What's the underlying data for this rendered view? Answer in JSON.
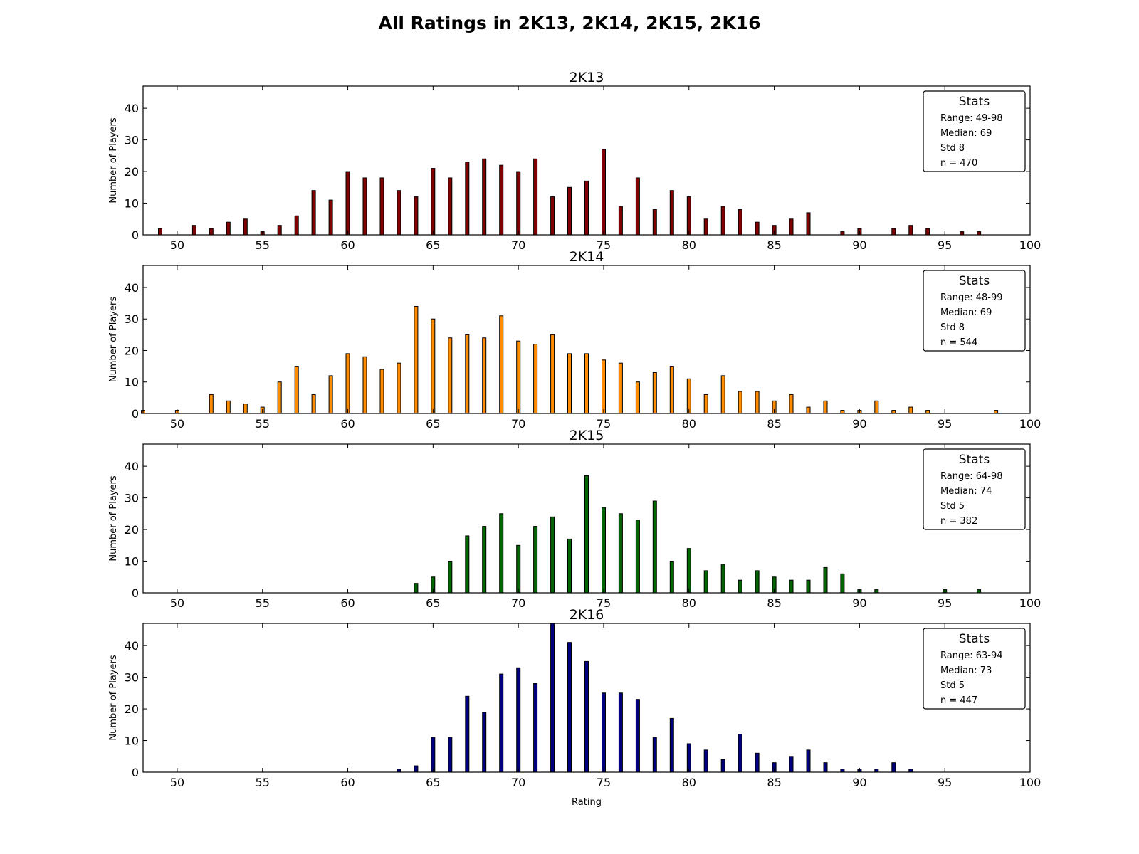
{
  "figure_title": "All Ratings in 2K13, 2K14, 2K15, 2K16",
  "chart_data": [
    {
      "type": "bar",
      "title": "2K13",
      "xlabel": "",
      "ylabel": "Number of Players",
      "xlim": [
        48,
        100
      ],
      "ylim": [
        0,
        47
      ],
      "xticks": [
        50,
        55,
        60,
        65,
        70,
        75,
        80,
        85,
        90,
        95,
        100
      ],
      "yticks": [
        0,
        10,
        20,
        30,
        40
      ],
      "color": "#800000",
      "grid": false,
      "x": [
        49,
        50,
        51,
        52,
        53,
        54,
        55,
        56,
        57,
        58,
        59,
        60,
        61,
        62,
        63,
        64,
        65,
        66,
        67,
        68,
        69,
        70,
        71,
        72,
        73,
        74,
        75,
        76,
        77,
        78,
        79,
        80,
        81,
        82,
        83,
        84,
        85,
        86,
        87,
        88,
        89,
        90,
        91,
        92,
        93,
        94,
        95,
        96,
        97,
        98
      ],
      "values": [
        2,
        0,
        3,
        2,
        4,
        5,
        1,
        3,
        6,
        14,
        11,
        20,
        18,
        18,
        14,
        12,
        21,
        18,
        23,
        24,
        22,
        20,
        24,
        12,
        15,
        17,
        27,
        9,
        18,
        8,
        14,
        12,
        5,
        9,
        8,
        4,
        3,
        5,
        7,
        0,
        1,
        2,
        0,
        2,
        3,
        2,
        0,
        1,
        1,
        0
      ],
      "stats": {
        "title": "Stats",
        "lines": [
          "Range: 49-98",
          "Median: 69",
          "Std 8",
          "n = 470"
        ]
      }
    },
    {
      "type": "bar",
      "title": "2K14",
      "xlabel": "",
      "ylabel": "Number of Players",
      "xlim": [
        48,
        100
      ],
      "ylim": [
        0,
        47
      ],
      "xticks": [
        50,
        55,
        60,
        65,
        70,
        75,
        80,
        85,
        90,
        95,
        100
      ],
      "yticks": [
        0,
        10,
        20,
        30,
        40
      ],
      "color": "#ff8c00",
      "grid": false,
      "x": [
        48,
        49,
        50,
        51,
        52,
        53,
        54,
        55,
        56,
        57,
        58,
        59,
        60,
        61,
        62,
        63,
        64,
        65,
        66,
        67,
        68,
        69,
        70,
        71,
        72,
        73,
        74,
        75,
        76,
        77,
        78,
        79,
        80,
        81,
        82,
        83,
        84,
        85,
        86,
        87,
        88,
        89,
        90,
        91,
        92,
        93,
        94,
        95,
        96,
        97,
        98
      ],
      "values": [
        1,
        0,
        1,
        0,
        6,
        4,
        3,
        2,
        10,
        15,
        6,
        12,
        19,
        18,
        14,
        16,
        34,
        30,
        24,
        25,
        24,
        31,
        23,
        22,
        25,
        19,
        19,
        17,
        16,
        10,
        13,
        15,
        11,
        6,
        12,
        7,
        7,
        4,
        6,
        2,
        4,
        1,
        1,
        4,
        1,
        2,
        1,
        0,
        0,
        0,
        1
      ],
      "stats": {
        "title": "Stats",
        "lines": [
          "Range: 48-99",
          "Median: 69",
          "Std 8",
          "n = 544"
        ]
      }
    },
    {
      "type": "bar",
      "title": "2K15",
      "xlabel": "",
      "ylabel": "Number of Players",
      "xlim": [
        48,
        100
      ],
      "ylim": [
        0,
        47
      ],
      "xticks": [
        50,
        55,
        60,
        65,
        70,
        75,
        80,
        85,
        90,
        95,
        100
      ],
      "yticks": [
        0,
        10,
        20,
        30,
        40
      ],
      "color": "#006400",
      "grid": false,
      "x": [
        64,
        65,
        66,
        67,
        68,
        69,
        70,
        71,
        72,
        73,
        74,
        75,
        76,
        77,
        78,
        79,
        80,
        81,
        82,
        83,
        84,
        85,
        86,
        87,
        88,
        89,
        90,
        91,
        92,
        93,
        94,
        95,
        96,
        97
      ],
      "values": [
        3,
        5,
        10,
        18,
        21,
        25,
        15,
        21,
        24,
        17,
        37,
        27,
        25,
        23,
        29,
        10,
        14,
        7,
        9,
        4,
        7,
        5,
        4,
        4,
        8,
        6,
        1,
        1,
        0,
        0,
        0,
        1,
        0,
        1
      ],
      "stats": {
        "title": "Stats",
        "lines": [
          "Range: 64-98",
          "Median: 74",
          "Std 5",
          "n = 382"
        ]
      }
    },
    {
      "type": "bar",
      "title": "2K16",
      "xlabel": "Rating",
      "ylabel": "Number of Players",
      "xlim": [
        48,
        100
      ],
      "ylim": [
        0,
        47
      ],
      "xticks": [
        50,
        55,
        60,
        65,
        70,
        75,
        80,
        85,
        90,
        95,
        100
      ],
      "yticks": [
        0,
        10,
        20,
        30,
        40
      ],
      "color": "#00007f",
      "grid": false,
      "x": [
        63,
        64,
        65,
        66,
        67,
        68,
        69,
        70,
        71,
        72,
        73,
        74,
        75,
        76,
        77,
        78,
        79,
        80,
        81,
        82,
        83,
        84,
        85,
        86,
        87,
        88,
        89,
        90,
        91,
        92,
        93
      ],
      "values": [
        1,
        2,
        11,
        11,
        24,
        19,
        31,
        33,
        28,
        47,
        41,
        35,
        25,
        25,
        23,
        11,
        17,
        9,
        7,
        4,
        12,
        6,
        3,
        5,
        7,
        3,
        1,
        1,
        1,
        3,
        1
      ],
      "stats": {
        "title": "Stats",
        "lines": [
          "Range: 63-94",
          "Median: 73",
          "Std 5",
          "n = 447"
        ]
      }
    }
  ]
}
